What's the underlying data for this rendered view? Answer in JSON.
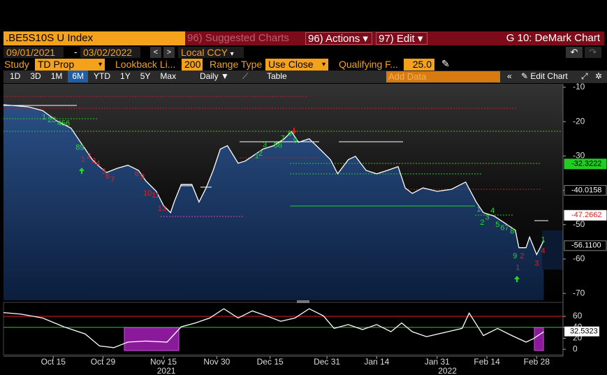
{
  "header": {
    "ticker": ".BE5S10S U Index",
    "menu": [
      "96) Suggested Charts",
      "96) Actions",
      "97) Edit"
    ],
    "title": "G 10: DeMark Chart"
  },
  "dates": {
    "start": "09/01/2021",
    "end": "03/02/2022",
    "currency": "Local CCY"
  },
  "study": {
    "label": "Study",
    "value": "TD Prop",
    "lookback_label": "Lookback Li...",
    "lookback": "200",
    "range_label": "Range Type",
    "range": "Use Close",
    "qualifying_label": "Qualifying F...",
    "qualifying": "25.0"
  },
  "toolbar": {
    "periods": [
      "1D",
      "3D",
      "1M",
      "6M",
      "YTD",
      "1Y",
      "5Y",
      "Max"
    ],
    "active": 3,
    "frequency": "Daily",
    "table": "Table",
    "add_data": "Add Data",
    "edit_chart": "Edit Chart"
  },
  "price_chart": {
    "type": "line",
    "color": "#ffffff",
    "x": [
      30,
      37,
      41,
      45,
      49,
      51,
      53,
      55,
      57,
      59,
      62,
      65,
      68,
      70,
      73,
      75,
      77,
      78,
      80,
      83,
      85,
      87,
      89,
      91,
      93,
      96,
      98,
      100,
      103,
      106,
      109,
      111,
      113,
      116,
      119,
      122,
      124,
      127,
      129,
      132,
      135,
      138,
      141,
      143,
      145,
      148,
      152,
      156,
      160,
      163,
      165,
      168,
      171,
      174,
      175,
      177,
      178,
      180,
      182
    ],
    "values": [
      -15.1,
      -15.7,
      -16.8,
      -19.8,
      -21.9,
      -25,
      -28,
      -31.1,
      -33.1,
      -34.8,
      -33.6,
      -32.7,
      -34.2,
      -37.2,
      -40.3,
      -44.4,
      -46.5,
      -43.4,
      -38.3,
      -38.3,
      -43.4,
      -39.3,
      -34.2,
      -28,
      -27,
      -32.1,
      -31.5,
      -30.1,
      -28,
      -27,
      -25,
      -22.9,
      -26,
      -25,
      -28,
      -31.1,
      -35.2,
      -31.1,
      -30.1,
      -34.2,
      -35.2,
      -34.2,
      -33.1,
      -39.3,
      -40.9,
      -39.3,
      -40.3,
      -39.7,
      -37.6,
      -43.4,
      -46.5,
      -47.5,
      -49.5,
      -51.6,
      -56.7,
      -56.7,
      -53.6,
      -58.7,
      -54.6
    ],
    "xlim": [
      30,
      187.4
    ],
    "ylim": [
      -72,
      -9
    ],
    "yticks": [
      -10,
      -20,
      -30,
      -40,
      -50,
      -60,
      -70
    ],
    "price_tags": [
      {
        "value": -32.3222,
        "bg": "#22cc22",
        "fg": "#000000"
      },
      {
        "value": -40.0158,
        "bg": "#000000",
        "fg": "#ffffff"
      },
      {
        "value": -47.2662,
        "bg": "#ffffff",
        "fg": "#e02020"
      },
      {
        "value": -56.11,
        "label": "-56.1100",
        "bg": "#000000",
        "fg": "#ffffff"
      }
    ],
    "counts": [
      {
        "label": "1",
        "x": 41.4,
        "y": -18.8,
        "color": "#22dd22"
      },
      {
        "label": "23",
        "x": 43.6,
        "y": -19.6,
        "color": "#22dd22"
      },
      {
        "label": "456",
        "x": 46.9,
        "y": -20.6,
        "color": "#22dd22"
      },
      {
        "label": "89",
        "x": 51.5,
        "y": -27.6,
        "color": "#22dd22"
      },
      {
        "label": "1",
        "x": 52.4,
        "y": -31.1,
        "color": "#e02020"
      },
      {
        "label": "2",
        "x": 54.0,
        "y": -30.1,
        "color": "#e02020"
      },
      {
        "label": "3",
        "x": 55.4,
        "y": -31.5,
        "color": "#e02020"
      },
      {
        "label": "4",
        "x": 56.6,
        "y": -32.3,
        "color": "#e02020"
      },
      {
        "label": "5",
        "x": 58.3,
        "y": -34.6,
        "color": "#e02020"
      },
      {
        "label": "6",
        "x": 59.3,
        "y": -36.0,
        "color": "#e02020"
      },
      {
        "label": "7",
        "x": 60.7,
        "y": -37.0,
        "color": "#e02020"
      },
      {
        "label": "8",
        "x": 67.5,
        "y": -35.2,
        "color": "#e02020"
      },
      {
        "label": "9",
        "x": 69.1,
        "y": -36.0,
        "color": "#e02020"
      },
      {
        "label": "10",
        "x": 70.5,
        "y": -40.9,
        "color": "#e02020"
      },
      {
        "label": "11",
        "x": 72.8,
        "y": -41.5,
        "color": "#e02020"
      },
      {
        "label": "13",
        "x": 74.6,
        "y": -45.4,
        "color": "#e02020"
      },
      {
        "label": "1",
        "x": 101.3,
        "y": -30.1,
        "color": "#22dd22"
      },
      {
        "label": "2",
        "x": 102.3,
        "y": -29.3,
        "color": "#22dd22"
      },
      {
        "label": "3",
        "x": 103.5,
        "y": -26.8,
        "color": "#22dd22"
      },
      {
        "label": "56",
        "x": 107.2,
        "y": -27.0,
        "color": "#22dd22"
      },
      {
        "label": "7",
        "x": 108.6,
        "y": -25.0,
        "color": "#22dd22"
      },
      {
        "label": "8",
        "x": 110.5,
        "y": -23.5,
        "color": "#22dd22"
      },
      {
        "label": "9",
        "x": 112.1,
        "y": -25.6,
        "color": "#22dd22"
      },
      {
        "label": "1",
        "x": 163.7,
        "y": -45.6,
        "color": "#22dd22"
      },
      {
        "label": "2",
        "x": 164.7,
        "y": -49.5,
        "color": "#22dd22"
      },
      {
        "label": "3",
        "x": 166.1,
        "y": -47.9,
        "color": "#22dd22"
      },
      {
        "label": "4",
        "x": 167.6,
        "y": -46.0,
        "color": "#22dd22"
      },
      {
        "label": "5",
        "x": 169.0,
        "y": -50.1,
        "color": "#22dd22"
      },
      {
        "label": "67",
        "x": 171.0,
        "y": -51.0,
        "color": "#22dd22"
      },
      {
        "label": "8",
        "x": 173.1,
        "y": -52.0,
        "color": "#22dd22"
      },
      {
        "label": "9",
        "x": 173.9,
        "y": -59.2,
        "color": "#22dd22"
      },
      {
        "label": "2",
        "x": 175.9,
        "y": -59.2,
        "color": "#e02020"
      },
      {
        "label": "1",
        "x": 174.7,
        "y": -62.6,
        "color": "#e02020"
      },
      {
        "label": "1",
        "x": 181.8,
        "y": -54.4,
        "color": "#22dd22"
      },
      {
        "label": "4",
        "x": 181.8,
        "y": -57.7,
        "color": "#e02020"
      },
      {
        "label": "3",
        "x": 180.0,
        "y": -61.4,
        "color": "#e02020"
      }
    ]
  },
  "indicator_chart": {
    "type": "line",
    "color": "#ffffff",
    "x": [
      30,
      35,
      41,
      47,
      53,
      57,
      61,
      65,
      70,
      76,
      80,
      84,
      88,
      92,
      96,
      100,
      104,
      108,
      112,
      116,
      120,
      123,
      127,
      131,
      135,
      139,
      142,
      145,
      149,
      155,
      159,
      161,
      165,
      169,
      173,
      177,
      179,
      182
    ],
    "values": [
      67,
      64,
      57,
      41,
      28,
      6,
      3,
      13,
      15,
      13,
      41,
      48,
      57,
      74,
      57,
      70,
      61,
      51,
      57,
      74,
      61,
      38,
      45,
      36,
      45,
      32,
      48,
      32,
      23,
      32,
      38,
      66,
      25,
      38,
      25,
      13,
      19,
      32
    ],
    "ylim": [
      -10,
      83
    ],
    "yticks": [
      0,
      20,
      40,
      60
    ],
    "levels": [
      {
        "value": 60,
        "color": "#e02020"
      },
      {
        "value": 40,
        "color": "#22cc22"
      }
    ],
    "last_tag": 32.5323
  },
  "x_axis": {
    "xticks": [
      {
        "value": 44,
        "label": "Oct 15"
      },
      {
        "value": 58,
        "label": "Oct 29"
      },
      {
        "value": 75,
        "label": "Nov 15"
      },
      {
        "value": 90,
        "label": "Nov 30"
      },
      {
        "value": 105,
        "label": "Dec 15"
      },
      {
        "value": 121,
        "label": "Dec 31"
      },
      {
        "value": 135,
        "label": "Jan 14"
      },
      {
        "value": 152,
        "label": "Jan 31"
      },
      {
        "value": 166,
        "label": "Feb 14"
      },
      {
        "value": 180,
        "label": "Feb 28"
      }
    ],
    "years": [
      {
        "value": 75.8,
        "label": "2021"
      },
      {
        "value": 154.9,
        "label": "2022"
      }
    ]
  }
}
